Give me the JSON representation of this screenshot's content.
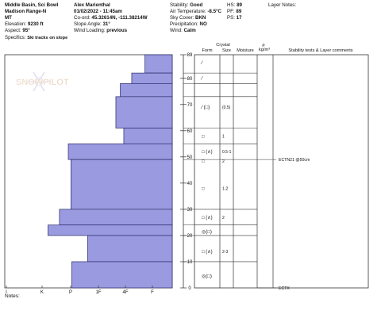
{
  "header": {
    "location": "Middle Basin, Sci Bowl",
    "range": "Madison Range-N",
    "state": "MT",
    "elevation_label": "Elevation:",
    "elevation": "9230 ft",
    "aspect_label": "Aspect:",
    "aspect": "95°",
    "observer": "Alex Marienthal",
    "datetime": "01/02/2022 - 11:45am",
    "coord_label": "Co-ord:",
    "coords": "45.32614N, -111.38214W",
    "slope_label": "Slope Angle:",
    "slope": "31°",
    "wind_loading_label": "Wind Loading:",
    "wind_loading": "previous",
    "stability_label": "Stability:",
    "stability": "Good",
    "air_temp_label": "Air Temperature:",
    "air_temp": "-8.5°C",
    "sky_label": "Sky Cover:",
    "sky": "BKN",
    "precip_label": "Precipitation:",
    "precip": "NO",
    "wind_label": "Wind:",
    "wind": "Calm",
    "hs_label": "HS:",
    "hs": "89",
    "pf_label": "PF:",
    "pf": "89",
    "ps_label": "PS:",
    "ps": "17",
    "layer_notes_label": "Layer Notes:",
    "specifics_label": "Specifics:",
    "specifics": "Ski tracks on slope"
  },
  "columns": {
    "crystal": "Crystal",
    "form": "Form",
    "size": "Size",
    "moisture": "Moisture",
    "rho": "ρ",
    "rho_unit": "kg/m³",
    "stability_tests": "Stability tests & Layer comments"
  },
  "watermark": "SNOWPILOT",
  "hardness_axis": [
    "I",
    "K",
    "P",
    "1F",
    "4F",
    "F"
  ],
  "depth_ticks": [
    0,
    10,
    20,
    30,
    40,
    50,
    60,
    70,
    80,
    89
  ],
  "hs_max": 89,
  "layers": [
    {
      "top": 89,
      "bottom": 82,
      "hardness": 3.1
    },
    {
      "top": 82,
      "bottom": 78,
      "hardness": 4.6
    },
    {
      "top": 78,
      "bottom": 73,
      "hardness": 5.9
    },
    {
      "top": 73,
      "bottom": 61,
      "hardness": 6.4
    },
    {
      "top": 61,
      "bottom": 55,
      "hardness": 5.5
    },
    {
      "top": 55,
      "bottom": 49,
      "hardness": 11.8
    },
    {
      "top": 49,
      "bottom": 30,
      "hardness": 11.5
    },
    {
      "top": 30,
      "bottom": 24,
      "hardness": 12.8
    },
    {
      "top": 24,
      "bottom": 20,
      "hardness": 14.1
    },
    {
      "top": 20,
      "bottom": 10,
      "hardness": 9.6
    },
    {
      "top": 10,
      "bottom": 0,
      "hardness": 11.4
    }
  ],
  "grain_rows": [
    {
      "depth": 86,
      "form": "⁄",
      "size": ""
    },
    {
      "depth": 80,
      "form": "⁄",
      "size": ""
    },
    {
      "depth": 69,
      "form": "⁄ (□)",
      "size": "(0.5)"
    },
    {
      "depth": 58,
      "form": "□",
      "size": "1"
    },
    {
      "depth": 52,
      "form": "□ (∧)",
      "size": "0.5-1"
    },
    {
      "depth": 48.5,
      "form": "□",
      "size": "2"
    },
    {
      "depth": 38,
      "form": "□",
      "size": "1-2"
    },
    {
      "depth": 27,
      "form": "□ (∧)",
      "size": "2"
    },
    {
      "depth": 21.5,
      "form": "◎(□)",
      "size": ""
    },
    {
      "depth": 14,
      "form": "□ (∧)",
      "size": "2-3"
    },
    {
      "depth": 4.5,
      "form": "◎(□)",
      "size": ""
    }
  ],
  "tests": [
    {
      "depth": 49,
      "label": "ECTN21 @50cm"
    },
    {
      "depth": 0,
      "label": "ECTX"
    }
  ],
  "notes_label": "Notes:",
  "colors": {
    "layer_fill": "#9a9ae0",
    "layer_stroke": "#2a2a6a",
    "grid": "#333333"
  }
}
